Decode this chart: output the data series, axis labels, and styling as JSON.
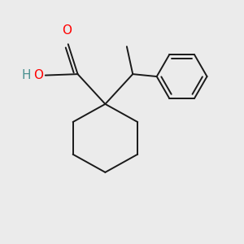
{
  "background_color": "#ebebeb",
  "line_color": "#1a1a1a",
  "O_color": "#ff0000",
  "H_color": "#4a9090",
  "line_width": 1.4,
  "fig_size": [
    3.0,
    3.0
  ],
  "dpi": 100,
  "xlim": [
    0.0,
    1.0
  ],
  "ylim": [
    0.0,
    1.0
  ]
}
